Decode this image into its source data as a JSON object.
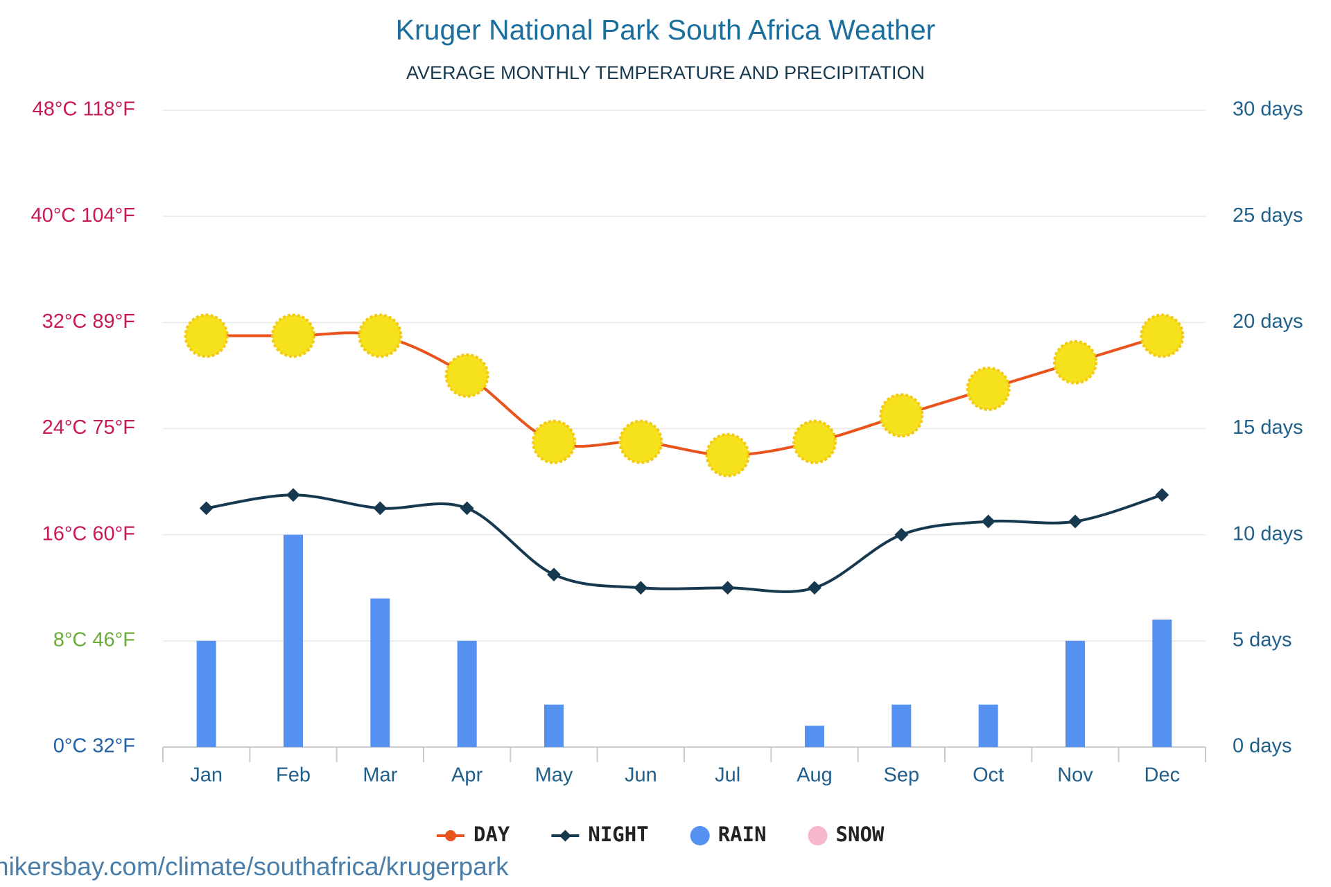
{
  "chart_data": {
    "type": "line",
    "title": "Kruger National Park South Africa Weather",
    "subtitle": "AVERAGE MONTHLY TEMPERATURE AND PRECIPITATION",
    "categories": [
      "Jan",
      "Feb",
      "Mar",
      "Apr",
      "May",
      "Jun",
      "Jul",
      "Aug",
      "Sep",
      "Oct",
      "Nov",
      "Dec"
    ],
    "series": [
      {
        "name": "DAY",
        "color": "#e8541c",
        "values": [
          31,
          31,
          31,
          28,
          23,
          23,
          22,
          23,
          25,
          27,
          29,
          31
        ]
      },
      {
        "name": "NIGHT",
        "color": "#17394f",
        "values": [
          18,
          19,
          18,
          18,
          13,
          12,
          12,
          12,
          16,
          17,
          17,
          19
        ]
      },
      {
        "name": "RAIN",
        "type": "bar",
        "axis": "y2",
        "color": "#5591f0",
        "values": [
          5,
          10,
          7,
          5,
          2,
          0,
          0,
          1,
          2,
          2,
          5,
          6
        ]
      },
      {
        "name": "SNOW",
        "type": "bar",
        "axis": "y2",
        "color": "#f7b8cc",
        "values": [
          0,
          0,
          0,
          0,
          0,
          0,
          0,
          0,
          0,
          0,
          0,
          0
        ]
      }
    ],
    "ylim": [
      0,
      48
    ],
    "yticks": [
      {
        "value": 0,
        "label": "0°C 32°F"
      },
      {
        "value": 8,
        "label": "8°C 46°F"
      },
      {
        "value": 16,
        "label": "16°C 60°F"
      },
      {
        "value": 24,
        "label": "24°C 75°F"
      },
      {
        "value": 32,
        "label": "32°C 89°F"
      },
      {
        "value": 40,
        "label": "40°C 104°F"
      },
      {
        "value": 48,
        "label": "48°C 118°F"
      }
    ],
    "ytick_colors": [
      "#1f5fa8",
      "#6aab3a",
      "#c8185a",
      "#c8185a",
      "#c8185a",
      "#c8185a",
      "#c8185a"
    ],
    "y2lim": [
      0,
      30
    ],
    "y2ticks": [
      {
        "value": 0,
        "label": "0 days"
      },
      {
        "value": 5,
        "label": "5 days"
      },
      {
        "value": 10,
        "label": "10 days"
      },
      {
        "value": 15,
        "label": "15 days"
      },
      {
        "value": 20,
        "label": "20 days"
      },
      {
        "value": 25,
        "label": "25 days"
      },
      {
        "value": 30,
        "label": "30 days"
      }
    ],
    "grid": true,
    "legend": "bottom",
    "source": "hikersbay.com/climate/southafrica/krugerpark"
  }
}
